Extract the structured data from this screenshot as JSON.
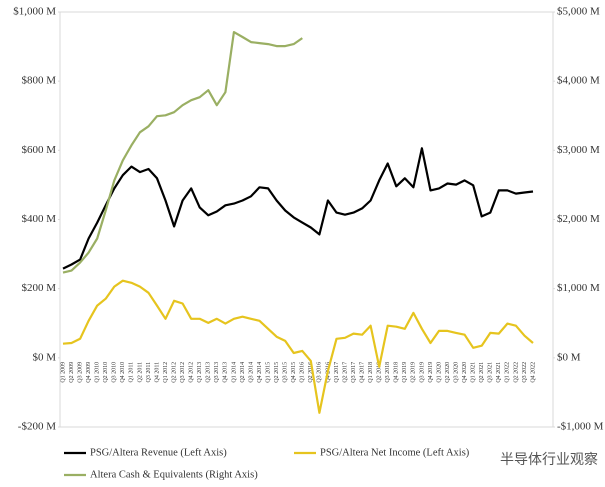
{
  "chart_data": {
    "type": "line",
    "categories": [
      "Q1 2009",
      "Q2 2009",
      "Q3 2009",
      "Q4 2009",
      "Q1 2010",
      "Q2 2010",
      "Q3 2010",
      "Q4 2010",
      "Q1 2011",
      "Q2 2011",
      "Q3 2011",
      "Q4 2011",
      "Q1 2012",
      "Q2 2012",
      "Q3 2012",
      "Q4 2012",
      "Q1 2013",
      "Q2 2013",
      "Q3 2013",
      "Q4 2013",
      "Q1 2014",
      "Q2 2014",
      "Q3 2014",
      "Q4 2014",
      "Q1 2015",
      "Q2 2015",
      "Q3 2015",
      "Q4 2015",
      "Q1 2016",
      "Q2 2016",
      "Q3 2016",
      "Q4 2016",
      "Q1 2017",
      "Q2 2017",
      "Q3 2017",
      "Q4 2017",
      "Q1 2018",
      "Q2 2018",
      "Q3 2018",
      "Q4 2018",
      "Q1 2019",
      "Q2 2019",
      "Q3 2019",
      "Q4 2019",
      "Q1 2020",
      "Q2 2020",
      "Q3 2020",
      "Q4 2020",
      "Q1 2021",
      "Q2 2021",
      "Q3 2021",
      "Q4 2021",
      "Q1 2022",
      "Q2 2022",
      "Q3 2022",
      "Q4 2022"
    ],
    "series": [
      {
        "name": "PSG/Altera Revenue (Left Axis)",
        "color": "#000000",
        "values": [
          258,
          270,
          284,
          345,
          391,
          441,
          490,
          528,
          553,
          537,
          546,
          519,
          455,
          380,
          455,
          490,
          435,
          412,
          423,
          441,
          446,
          455,
          467,
          493,
          490,
          455,
          426,
          406,
          391,
          377,
          357,
          455,
          420,
          414,
          420,
          432,
          455,
          513,
          562,
          496,
          519,
          493,
          606,
          484,
          490,
          504,
          501,
          513,
          499,
          409,
          420,
          484,
          484,
          475,
          478,
          481
        ]
      },
      {
        "name": "PSG/Altera Net Income (Left Axis)",
        "color": "#e6c41e",
        "values": [
          41,
          43,
          55,
          107,
          151,
          171,
          206,
          223,
          217,
          206,
          188,
          151,
          113,
          165,
          157,
          113,
          113,
          101,
          113,
          99,
          113,
          119,
          113,
          107,
          84,
          61,
          49,
          14,
          20,
          -9,
          -159,
          -38,
          55,
          58,
          70,
          67,
          93,
          -26,
          93,
          90,
          84,
          130,
          84,
          43,
          78,
          78,
          72,
          67,
          29,
          35,
          72,
          70,
          99,
          93,
          64,
          43
        ]
      },
      {
        "name": "Altera Cash & Equivalents (Right Axis)",
        "color": "#9aaf63",
        "axis": "y2",
        "values": [
          1232,
          1261,
          1377,
          1522,
          1725,
          2130,
          2565,
          2855,
          3072,
          3261,
          3348,
          3493,
          3507,
          3551,
          3652,
          3725,
          3768,
          3870,
          3652,
          3841,
          4710,
          4638,
          4565,
          4551,
          4536,
          4507,
          4507,
          4536,
          4623,
          null,
          null,
          null,
          null,
          null,
          null,
          null,
          null,
          null,
          null,
          null,
          null,
          null,
          null,
          null,
          null,
          null,
          null,
          null,
          null,
          null,
          null,
          null,
          null,
          null,
          null,
          null
        ]
      }
    ],
    "ylim": [
      -200,
      1000
    ],
    "yticks": [
      {
        "value": -200,
        "label": "-$200 M"
      },
      {
        "value": 0,
        "label": "$0 M"
      },
      {
        "value": 200,
        "label": "$200 M"
      },
      {
        "value": 400,
        "label": "$400 M"
      },
      {
        "value": 600,
        "label": "$600 M"
      },
      {
        "value": 800,
        "label": "$800 M"
      },
      {
        "value": 1000,
        "label": "$1,000 M"
      }
    ],
    "y2lim": [
      -1000,
      5000
    ],
    "y2ticks": [
      {
        "value": -1000,
        "label": "-$1,000 M"
      },
      {
        "value": 0,
        "label": "$0 M"
      },
      {
        "value": 1000,
        "label": "$1,000 M"
      },
      {
        "value": 2000,
        "label": "$2,000 M"
      },
      {
        "value": 3000,
        "label": "$3,000 M"
      },
      {
        "value": 4000,
        "label": "$4,000 M"
      },
      {
        "value": 5000,
        "label": "$5,000 M"
      }
    ],
    "grid": false,
    "legend": "bottom",
    "watermark": "半导体行业观察"
  }
}
